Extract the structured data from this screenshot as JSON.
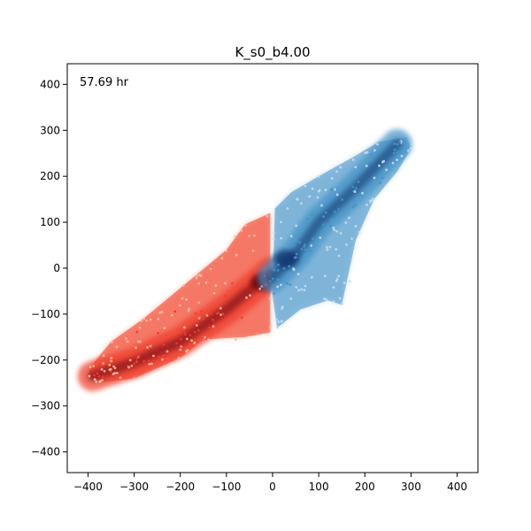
{
  "chart_data": {
    "type": "scatter",
    "title": "K_s0_b4.00",
    "annotation": "57.69 hr",
    "xlabel": "",
    "ylabel": "",
    "xlim": [
      -445,
      445
    ],
    "ylim": [
      -445,
      445
    ],
    "xticks": [
      -400,
      -300,
      -200,
      -100,
      0,
      100,
      200,
      300,
      400
    ],
    "yticks": [
      -400,
      -300,
      -200,
      -100,
      0,
      100,
      200,
      300,
      400
    ],
    "xtick_labels": [
      "−400",
      "−300",
      "−200",
      "−100",
      "0",
      "100",
      "200",
      "300",
      "400"
    ],
    "ytick_labels": [
      "−400",
      "−300",
      "−200",
      "−100",
      "0",
      "100",
      "200",
      "300",
      "400"
    ],
    "grid": false,
    "series": [
      {
        "colormap": "Reds",
        "x_range": [
          -400,
          0
        ],
        "peak": [
          -20,
          -30
        ],
        "dense_core": [
          [
            -390,
            -235
          ],
          [
            -300,
            -205
          ],
          [
            -200,
            -160
          ],
          [
            -100,
            -90
          ],
          [
            -5,
            -10
          ]
        ],
        "outline": [
          [
            -400,
            -235
          ],
          [
            -380,
            -250
          ],
          [
            -300,
            -240
          ],
          [
            -200,
            -195
          ],
          [
            -150,
            -155
          ],
          [
            -60,
            -150
          ],
          [
            -5,
            -140
          ],
          [
            -5,
            -30
          ],
          [
            -5,
            120
          ],
          [
            -60,
            95
          ],
          [
            -100,
            40
          ],
          [
            -160,
            -10
          ],
          [
            -220,
            -60
          ],
          [
            -280,
            -110
          ],
          [
            -350,
            -160
          ],
          [
            -395,
            -215
          ]
        ]
      },
      {
        "colormap": "Blues",
        "x_range": [
          0,
          300
        ],
        "peak": [
          30,
          20
        ],
        "dense_core": [
          [
            0,
            -20
          ],
          [
            50,
            30
          ],
          [
            100,
            100
          ],
          [
            180,
            175
          ],
          [
            270,
            270
          ]
        ],
        "outline": [
          [
            5,
            130
          ],
          [
            40,
            165
          ],
          [
            100,
            200
          ],
          [
            180,
            245
          ],
          [
            230,
            275
          ],
          [
            290,
            285
          ],
          [
            300,
            260
          ],
          [
            270,
            210
          ],
          [
            220,
            150
          ],
          [
            180,
            60
          ],
          [
            150,
            -80
          ],
          [
            120,
            -70
          ],
          [
            60,
            -90
          ],
          [
            10,
            -130
          ],
          [
            0,
            -60
          ]
        ]
      }
    ],
    "colors": {
      "red_dark": "#67000d",
      "red_mid": "#ef3b2c",
      "red_light": "#fcbba1",
      "blue_dark": "#08306b",
      "blue_mid": "#4292c6",
      "blue_light": "#c6dbef"
    }
  }
}
